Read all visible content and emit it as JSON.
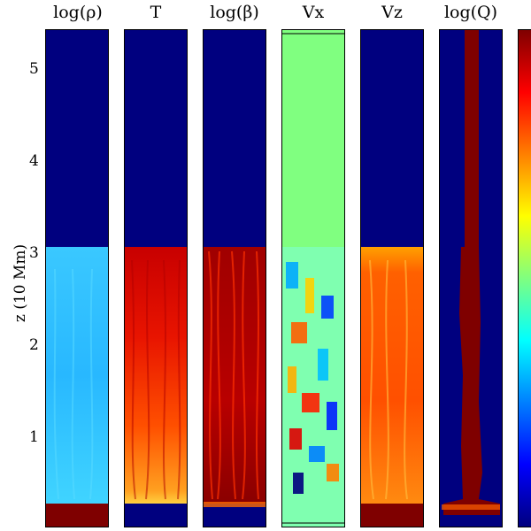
{
  "figure": {
    "ylabel": "z (10 Mm)",
    "yticks": [
      "5",
      "4",
      "3",
      "2",
      "1"
    ],
    "panels": [
      {
        "key": "rho",
        "title": "log(ρ)"
      },
      {
        "key": "T",
        "title": "T"
      },
      {
        "key": "beta",
        "title": "log(β)"
      },
      {
        "key": "vx",
        "title": "Vx"
      },
      {
        "key": "vz",
        "title": "Vz"
      },
      {
        "key": "q",
        "title": "log(Q)"
      }
    ],
    "colorbar": {
      "name": "jet"
    },
    "colors": {
      "dark_blue": "#00007f",
      "dark_red": "#7f0000",
      "green_top": "#80ff80",
      "light_blue": "#33c6ff",
      "red": "#e01800",
      "orange": "#ff6a00"
    }
  }
}
